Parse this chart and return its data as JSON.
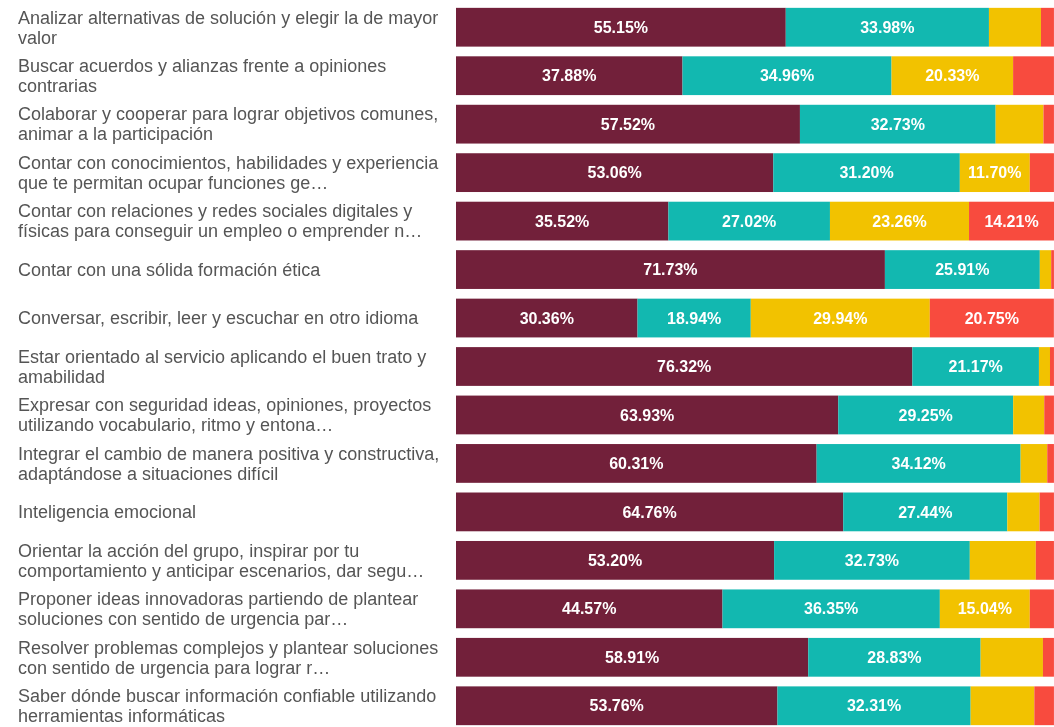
{
  "chart_data": {
    "type": "bar",
    "orientation": "horizontal",
    "stacked": true,
    "grid": false,
    "categories": [
      "Analizar alternativas de solución y elegir la de mayor valor",
      "Buscar acuerdos y alianzas frente a opiniones contrarias",
      "Colaborar y cooperar para lograr objetivos comunes, animar a la participación",
      "Contar con conocimientos, habilidades y experiencia que te permitan ocupar funciones ge…",
      "Contar con relaciones y redes sociales digitales y físicas para conseguir un empleo o emprender n…",
      "Contar con una sólida formación ética",
      "Conversar, escribir, leer y escuchar en otro idioma",
      "Estar orientado al servicio aplicando el buen trato y amabilidad",
      "Expresar con seguridad ideas, opiniones, proyectos  utilizando vocabulario, ritmo y entona…",
      "Integrar el cambio de manera positiva y constructiva, adaptándose a situaciones difícil",
      "Inteligencia emocional",
      "Orientar la acción del grupo, inspirar por tu comportamiento y anticipar escenarios, dar segu…",
      "Proponer ideas innovadoras partiendo de plantear soluciones con sentido de urgencia par…",
      "Resolver problemas complejos y plantear soluciones con sentido de urgencia para lograr r…",
      "Saber dónde buscar información confiable utilizando herramientas informáticas"
    ],
    "series": [
      {
        "color": "#72203a",
        "values": [
          55.15,
          37.88,
          57.52,
          53.06,
          35.52,
          71.73,
          30.36,
          76.32,
          63.93,
          60.31,
          64.76,
          53.2,
          44.57,
          58.91,
          53.76
        ],
        "value_labels": [
          "55.15%",
          "37.88%",
          "57.52%",
          "53.06%",
          "35.52%",
          "71.73%",
          "30.36%",
          "76.32%",
          "63.93%",
          "60.31%",
          "64.76%",
          "53.20%",
          "44.57%",
          "58.91%",
          "53.76%"
        ]
      },
      {
        "color": "#12b8b0",
        "values": [
          33.98,
          34.96,
          32.73,
          31.2,
          27.02,
          25.91,
          18.94,
          21.17,
          29.25,
          34.12,
          27.44,
          32.73,
          36.35,
          28.83,
          32.31
        ],
        "value_labels": [
          "33.98%",
          "34.96%",
          "32.73%",
          "31.20%",
          "27.02%",
          "25.91%",
          "18.94%",
          "21.17%",
          "29.25%",
          "34.12%",
          "27.44%",
          "32.73%",
          "36.35%",
          "28.83%",
          "32.31%"
        ]
      },
      {
        "color": "#f2c200",
        "values": [
          8.7,
          20.33,
          8.0,
          11.7,
          23.26,
          1.9,
          29.94,
          1.85,
          5.2,
          4.45,
          5.4,
          11.04,
          15.04,
          10.42,
          10.65
        ],
        "value_labels": [
          null,
          "20.33%",
          null,
          "11.70%",
          "23.26%",
          null,
          "29.94%",
          null,
          null,
          null,
          null,
          null,
          "15.04%",
          null,
          null
        ]
      },
      {
        "color": "#f84b3e",
        "values": [
          2.17,
          6.83,
          1.75,
          4.04,
          14.21,
          0.46,
          20.75,
          0.66,
          1.62,
          1.12,
          2.4,
          3.03,
          4.04,
          1.84,
          3.28
        ],
        "value_labels": [
          null,
          null,
          null,
          null,
          "14.21%",
          null,
          "20.75%",
          null,
          null,
          null,
          null,
          null,
          null,
          null,
          null
        ]
      }
    ]
  }
}
